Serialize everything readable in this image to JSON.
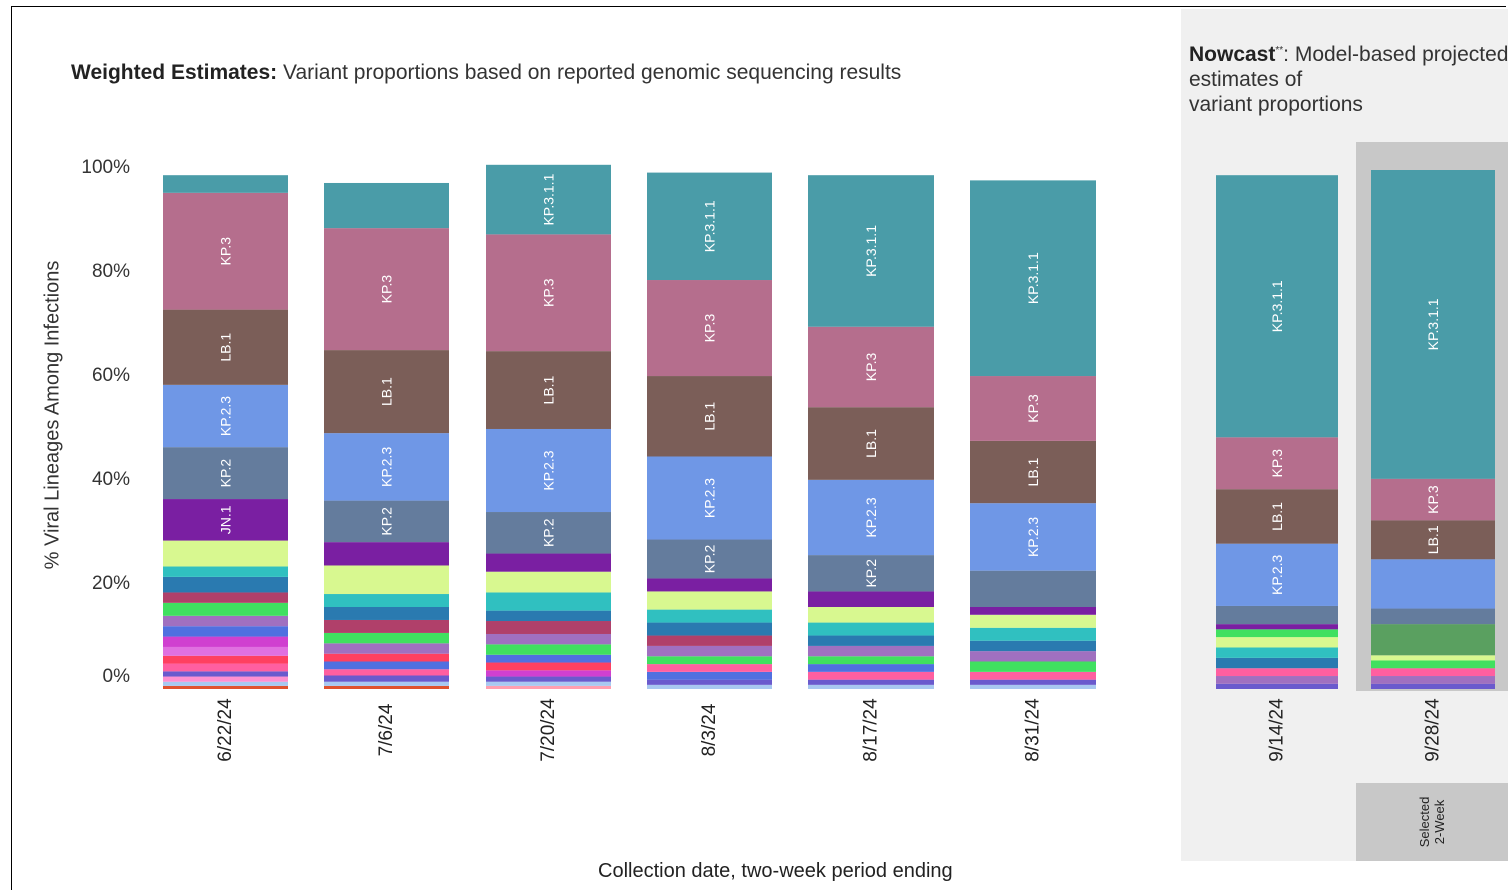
{
  "titles": {
    "weighted_bold": "Weighted Estimates:",
    "weighted_rest": " Variant proportions based on reported genomic sequencing results",
    "nowcast_bold": "Nowcast",
    "nowcast_sup": "**",
    "nowcast_rest": ": Model-based projected estimates of\nvariant proportions",
    "selected_line1": "Selected",
    "selected_line2": "2-Week"
  },
  "colors": {
    "KP.3.1.1": "#4a9ca8",
    "KP.3": "#b56e8d",
    "LB.1": "#7b5e58",
    "KP.2.3": "#6f97e6",
    "KP.2": "#647c9d",
    "JN.1": "#7a1fa2"
  },
  "chart_data": {
    "type": "bar",
    "stacked": true,
    "ylabel": "% Viral Lineages Among Infections",
    "xlabel": "Collection date, two-week period ending",
    "ylim": [
      0,
      100
    ],
    "yticks": [
      "100%",
      "80%",
      "60%",
      "40%",
      "20%",
      "0%"
    ],
    "categories": [
      "6/22/24",
      "7/6/24",
      "7/20/24",
      "8/3/24",
      "8/17/24",
      "8/31/24",
      "9/14/24",
      "9/28/24"
    ],
    "nowcast_categories": [
      "9/14/24",
      "9/28/24"
    ],
    "selected_category": "9/28/24",
    "bars": [
      {
        "date": "6/22/24",
        "segments": [
          {
            "v": 0.6,
            "c": "#e0522e"
          },
          {
            "v": 0.8,
            "c": "#a8c8f0"
          },
          {
            "v": 1.0,
            "c": "#ff8fd0"
          },
          {
            "v": 1.0,
            "c": "#6a5acd"
          },
          {
            "v": 1.5,
            "c": "#ff5fa0"
          },
          {
            "v": 1.5,
            "c": "#ff4060"
          },
          {
            "v": 1.7,
            "c": "#e070e0"
          },
          {
            "v": 2.0,
            "c": "#d040d0"
          },
          {
            "v": 2.0,
            "c": "#5070e0"
          },
          {
            "v": 2.0,
            "c": "#a070c0"
          },
          {
            "v": 2.5,
            "c": "#40e060"
          },
          {
            "v": 2.0,
            "c": "#b0406a"
          },
          {
            "v": 3.0,
            "c": "#2a7ab0"
          },
          {
            "v": 2.0,
            "c": "#30c0c0"
          },
          {
            "v": 5.0,
            "c": "#d8f890"
          },
          {
            "v": 8.0,
            "c": "#7a1fa2",
            "label": "JN.1"
          },
          {
            "v": 10.0,
            "c": "#647c9d",
            "label": "KP.2"
          },
          {
            "v": 12.0,
            "c": "#6f97e6",
            "label": "KP.2.3"
          },
          {
            "v": 14.5,
            "c": "#7b5e58",
            "label": "LB.1"
          },
          {
            "v": 22.5,
            "c": "#b56e8d",
            "label": "KP.3"
          },
          {
            "v": 3.4,
            "c": "#4a9ca8"
          }
        ]
      },
      {
        "date": "7/6/24",
        "segments": [
          {
            "v": 0.6,
            "c": "#e0522e"
          },
          {
            "v": 0.8,
            "c": "#a8c8f0"
          },
          {
            "v": 1.2,
            "c": "#6a5acd"
          },
          {
            "v": 1.2,
            "c": "#ff5fa0"
          },
          {
            "v": 1.5,
            "c": "#5070e0"
          },
          {
            "v": 1.5,
            "c": "#ff4060"
          },
          {
            "v": 2.0,
            "c": "#a070c0"
          },
          {
            "v": 2.0,
            "c": "#40e060"
          },
          {
            "v": 2.5,
            "c": "#b0406a"
          },
          {
            "v": 2.5,
            "c": "#2a7ab0"
          },
          {
            "v": 2.5,
            "c": "#30c0c0"
          },
          {
            "v": 5.5,
            "c": "#d8f890"
          },
          {
            "v": 4.5,
            "c": "#7a1fa2"
          },
          {
            "v": 8.0,
            "c": "#647c9d",
            "label": "KP.2"
          },
          {
            "v": 13.0,
            "c": "#6f97e6",
            "label": "KP.2.3"
          },
          {
            "v": 16.0,
            "c": "#7b5e58",
            "label": "LB.1"
          },
          {
            "v": 23.5,
            "c": "#b56e8d",
            "label": "KP.3"
          },
          {
            "v": 8.7,
            "c": "#4a9ca8"
          }
        ]
      },
      {
        "date": "7/20/24",
        "segments": [
          {
            "v": 0.6,
            "c": "#ff9fb0"
          },
          {
            "v": 0.8,
            "c": "#a8c8f0"
          },
          {
            "v": 1.0,
            "c": "#6a5acd"
          },
          {
            "v": 1.2,
            "c": "#d040d0"
          },
          {
            "v": 1.5,
            "c": "#ff4060"
          },
          {
            "v": 1.5,
            "c": "#5070e0"
          },
          {
            "v": 2.0,
            "c": "#40e060"
          },
          {
            "v": 2.0,
            "c": "#a070c0"
          },
          {
            "v": 2.5,
            "c": "#b0406a"
          },
          {
            "v": 2.0,
            "c": "#2a7ab0"
          },
          {
            "v": 3.5,
            "c": "#30c0c0"
          },
          {
            "v": 4.0,
            "c": "#d8f890"
          },
          {
            "v": 3.5,
            "c": "#7a1fa2"
          },
          {
            "v": 8.0,
            "c": "#647c9d",
            "label": "KP.2"
          },
          {
            "v": 16.0,
            "c": "#6f97e6",
            "label": "KP.2.3"
          },
          {
            "v": 15.0,
            "c": "#7b5e58",
            "label": "LB.1"
          },
          {
            "v": 22.5,
            "c": "#b56e8d",
            "label": "KP.3"
          },
          {
            "v": 13.4,
            "c": "#4a9ca8",
            "label": "KP.3.1.1"
          }
        ]
      },
      {
        "date": "8/3/24",
        "segments": [
          {
            "v": 0.8,
            "c": "#a8c8f0"
          },
          {
            "v": 1.0,
            "c": "#6a5acd"
          },
          {
            "v": 1.5,
            "c": "#5070e0"
          },
          {
            "v": 1.5,
            "c": "#ff5fa0"
          },
          {
            "v": 1.5,
            "c": "#40e060"
          },
          {
            "v": 2.0,
            "c": "#a070c0"
          },
          {
            "v": 2.0,
            "c": "#b0406a"
          },
          {
            "v": 2.5,
            "c": "#2a7ab0"
          },
          {
            "v": 2.5,
            "c": "#30c0c0"
          },
          {
            "v": 3.5,
            "c": "#d8f890"
          },
          {
            "v": 2.5,
            "c": "#7a1fa2"
          },
          {
            "v": 7.5,
            "c": "#647c9d",
            "label": "KP.2"
          },
          {
            "v": 16.0,
            "c": "#6f97e6",
            "label": "KP.2.3"
          },
          {
            "v": 15.5,
            "c": "#7b5e58",
            "label": "LB.1"
          },
          {
            "v": 18.5,
            "c": "#b56e8d",
            "label": "KP.3"
          },
          {
            "v": 20.7,
            "c": "#4a9ca8",
            "label": "KP.3.1.1"
          }
        ]
      },
      {
        "date": "8/17/24",
        "segments": [
          {
            "v": 0.8,
            "c": "#a8c8f0"
          },
          {
            "v": 1.0,
            "c": "#6a5acd"
          },
          {
            "v": 1.5,
            "c": "#ff5fa0"
          },
          {
            "v": 1.5,
            "c": "#5070e0"
          },
          {
            "v": 1.5,
            "c": "#40e060"
          },
          {
            "v": 2.0,
            "c": "#a070c0"
          },
          {
            "v": 2.0,
            "c": "#2a7ab0"
          },
          {
            "v": 2.5,
            "c": "#30c0c0"
          },
          {
            "v": 3.0,
            "c": "#d8f890"
          },
          {
            "v": 3.0,
            "c": "#7a1fa2"
          },
          {
            "v": 7.0,
            "c": "#647c9d",
            "label": "KP.2"
          },
          {
            "v": 14.5,
            "c": "#6f97e6",
            "label": "KP.2.3"
          },
          {
            "v": 14.0,
            "c": "#7b5e58",
            "label": "LB.1"
          },
          {
            "v": 15.5,
            "c": "#b56e8d",
            "label": "KP.3"
          },
          {
            "v": 29.2,
            "c": "#4a9ca8",
            "label": "KP.3.1.1"
          }
        ]
      },
      {
        "date": "8/31/24",
        "segments": [
          {
            "v": 0.8,
            "c": "#a8c8f0"
          },
          {
            "v": 1.0,
            "c": "#6a5acd"
          },
          {
            "v": 1.5,
            "c": "#ff5fa0"
          },
          {
            "v": 2.0,
            "c": "#40e060"
          },
          {
            "v": 2.0,
            "c": "#a070c0"
          },
          {
            "v": 2.0,
            "c": "#2a7ab0"
          },
          {
            "v": 2.5,
            "c": "#30c0c0"
          },
          {
            "v": 2.5,
            "c": "#d8f890"
          },
          {
            "v": 1.5,
            "c": "#7a1fa2"
          },
          {
            "v": 7.0,
            "c": "#647c9d"
          },
          {
            "v": 13.0,
            "c": "#6f97e6",
            "label": "KP.2.3"
          },
          {
            "v": 12.0,
            "c": "#7b5e58",
            "label": "LB.1"
          },
          {
            "v": 12.5,
            "c": "#b56e8d",
            "label": "KP.3"
          },
          {
            "v": 37.7,
            "c": "#4a9ca8",
            "label": "KP.3.1.1"
          }
        ]
      },
      {
        "date": "9/14/24",
        "segments": [
          {
            "v": 1.0,
            "c": "#6a5acd"
          },
          {
            "v": 1.5,
            "c": "#a070c0"
          },
          {
            "v": 1.5,
            "c": "#ff5fa0"
          },
          {
            "v": 2.0,
            "c": "#2a7ab0"
          },
          {
            "v": 2.0,
            "c": "#30c0c0"
          },
          {
            "v": 2.0,
            "c": "#d8f890"
          },
          {
            "v": 1.5,
            "c": "#40e060"
          },
          {
            "v": 1.0,
            "c": "#7a1fa2"
          },
          {
            "v": 3.5,
            "c": "#647c9d"
          },
          {
            "v": 12.0,
            "c": "#6f97e6",
            "label": "KP.2.3"
          },
          {
            "v": 10.5,
            "c": "#7b5e58",
            "label": "LB.1"
          },
          {
            "v": 10.0,
            "c": "#b56e8d",
            "label": "KP.3"
          },
          {
            "v": 50.5,
            "c": "#4a9ca8",
            "label": "KP.3.1.1"
          }
        ]
      },
      {
        "date": "9/28/24",
        "segments": [
          {
            "v": 1.0,
            "c": "#6a5acd"
          },
          {
            "v": 1.5,
            "c": "#a070c0"
          },
          {
            "v": 1.5,
            "c": "#ff5fa0"
          },
          {
            "v": 1.5,
            "c": "#40e060"
          },
          {
            "v": 1.0,
            "c": "#d8f890"
          },
          {
            "v": 6.0,
            "c": "#5aa060"
          },
          {
            "v": 3.0,
            "c": "#647c9d"
          },
          {
            "v": 9.5,
            "c": "#6f97e6"
          },
          {
            "v": 7.5,
            "c": "#7b5e58",
            "label": "LB.1"
          },
          {
            "v": 8.0,
            "c": "#b56e8d",
            "label": "KP.3"
          },
          {
            "v": 59.5,
            "c": "#4a9ca8",
            "label": "KP.3.1.1"
          }
        ]
      }
    ]
  }
}
